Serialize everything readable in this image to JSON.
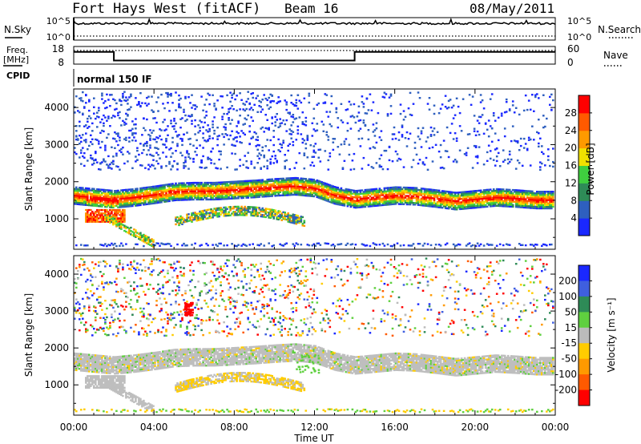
{
  "header": {
    "station": "Fort Hays West (fitACF)",
    "beam": "Beam 16",
    "date": "08/May/2011"
  },
  "noise_panel": {
    "left_label": "N.Sky",
    "right_label": "N.Search",
    "left_ticks": [
      "10^5",
      "10^0"
    ],
    "right_ticks": [
      "10^5",
      "10^0"
    ]
  },
  "freq_panel": {
    "left_label_line1": "Freq.",
    "left_label_line2": "[MHz]",
    "right_label": "Nave",
    "left_ticks": [
      "18",
      "8"
    ],
    "right_ticks": [
      "60",
      "0"
    ],
    "freq_profile_hours": [
      0,
      2,
      2,
      14,
      14,
      24
    ],
    "freq_profile_mhz": [
      16.5,
      16.5,
      10.5,
      10.5,
      16.5,
      16.5
    ]
  },
  "cpid_panel": {
    "label": "CPID",
    "mode": "normal 150 IF"
  },
  "chart_data": [
    {
      "type": "heatmap",
      "name": "power",
      "ylabel": "Slant Range [km]",
      "xlabel": "Time UT",
      "xticks": [
        "00:00",
        "04:00",
        "08:00",
        "12:00",
        "16:00",
        "20:00",
        "00:00"
      ],
      "yticks": [
        1000,
        2000,
        3000,
        4000
      ],
      "ylim": [
        180,
        4500
      ],
      "xlim_hours": [
        0,
        24
      ],
      "colorbar_label": "Power [dB]",
      "colorbar_ticks": [
        4,
        8,
        12,
        16,
        20,
        24,
        28
      ],
      "colorbar_colors": [
        "#1a28ff",
        "#2e5fbf",
        "#2e8b57",
        "#3fcf3f",
        "#f0e000",
        "#ff9a00",
        "#ff5a00",
        "#ff0000"
      ],
      "colorbar_range": [
        0,
        30
      ],
      "main_band_hours": [
        0,
        1,
        2,
        3,
        4,
        5,
        6,
        7,
        8,
        9,
        10,
        11,
        12,
        13,
        14,
        15,
        16,
        17,
        18,
        19,
        20,
        21,
        22,
        23,
        24
      ],
      "main_band_range_km": [
        1600,
        1550,
        1500,
        1550,
        1620,
        1700,
        1720,
        1720,
        1750,
        1780,
        1820,
        1850,
        1800,
        1600,
        1500,
        1550,
        1600,
        1580,
        1520,
        1450,
        1500,
        1550,
        1520,
        1480,
        1480
      ]
    },
    {
      "type": "heatmap",
      "name": "velocity",
      "ylabel": "Slant Range [km]",
      "xlabel": "Time UT",
      "xticks": [
        "00:00",
        "04:00",
        "08:00",
        "12:00",
        "16:00",
        "20:00",
        "00:00"
      ],
      "yticks": [
        1000,
        2000,
        3000,
        4000
      ],
      "ylim": [
        180,
        4500
      ],
      "xlim_hours": [
        0,
        24
      ],
      "colorbar_label": "Velocity [m s⁻¹]",
      "colorbar_ticks": [
        200,
        100,
        50,
        15,
        -15,
        -50,
        -100,
        -200
      ],
      "colorbar_colors": [
        "#1a28ff",
        "#3f5fdf",
        "#2e8b57",
        "#5fd03f",
        "#bbbbbb",
        "#ffcc00",
        "#ff9a00",
        "#ff5a00",
        "#ff0000"
      ],
      "ground_scatter_color": "#bebebe"
    }
  ],
  "x_axis": {
    "title": "Time UT",
    "tick_labels": [
      "00:00",
      "04:00",
      "08:00",
      "12:00",
      "16:00",
      "20:00",
      "00:00"
    ]
  }
}
